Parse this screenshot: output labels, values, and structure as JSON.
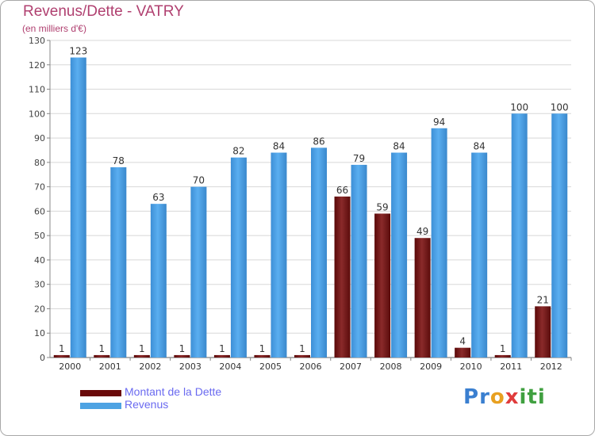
{
  "chart_data": {
    "type": "bar",
    "title": "Revenus/Dette - VATRY",
    "subtitle": "(en milliers d'€)",
    "categories": [
      "2000",
      "2001",
      "2002",
      "2003",
      "2004",
      "2005",
      "2006",
      "2007",
      "2008",
      "2009",
      "2010",
      "2011",
      "2012"
    ],
    "series": [
      {
        "name": "Montant de la Dette",
        "color": "#7a1a1a",
        "values": [
          1,
          1,
          1,
          1,
          1,
          1,
          1,
          66,
          59,
          49,
          4,
          1,
          21
        ]
      },
      {
        "name": "Revenus",
        "color": "#4ea3e3",
        "values": [
          123,
          78,
          63,
          70,
          82,
          84,
          86,
          79,
          84,
          94,
          84,
          100,
          100
        ]
      }
    ],
    "y_ticks": [
      0,
      10,
      20,
      30,
      40,
      50,
      60,
      70,
      80,
      90,
      100,
      110,
      120,
      130
    ],
    "ylim": [
      0,
      130
    ],
    "grid": true,
    "legend": "bottom-left"
  },
  "brand": {
    "logo_letters": [
      "P",
      "r",
      "o",
      "x",
      "i",
      "t",
      "i"
    ],
    "logo_colors": [
      "#3a7fd0",
      "#3a7fd0",
      "#e8a020",
      "#e03c3c",
      "#40a040",
      "#40a040",
      "#40a040"
    ]
  }
}
